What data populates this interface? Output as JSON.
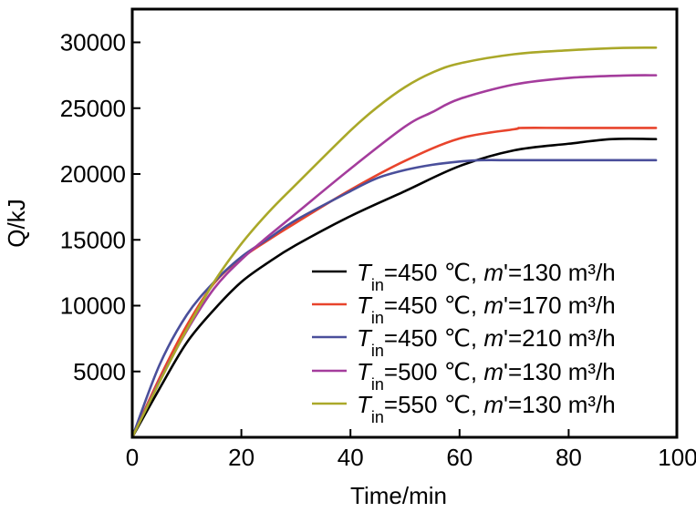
{
  "chart_data": {
    "type": "line",
    "xlabel": "Time/min",
    "ylabel": "Q/kJ",
    "xlim": [
      0,
      100
    ],
    "ylim": [
      0,
      32500
    ],
    "xticks": [
      0,
      20,
      40,
      60,
      80,
      100
    ],
    "yticks": [
      5000,
      10000,
      15000,
      20000,
      25000,
      30000
    ],
    "xtick_labels": [
      "0",
      "20",
      "40",
      "60",
      "80",
      "100"
    ],
    "ytick_labels": [
      "5000",
      "10000",
      "15000",
      "20000",
      "25000",
      "30000"
    ],
    "grid": false,
    "legend_position": "bottom-right",
    "series": [
      {
        "name": "T_in=450 ℃, m'=130 m³/h",
        "legend": {
          "t_symbol": "T",
          "subscript": "in",
          "temp": "=450 ℃, ",
          "m_symbol": "m",
          "flow": "'=130 m³/h"
        },
        "color": "#000000",
        "x": [
          0,
          5,
          10,
          15,
          20,
          25,
          30,
          40,
          50,
          60,
          70,
          80,
          88,
          96
        ],
        "y": [
          0,
          3700,
          7200,
          9700,
          11800,
          13300,
          14600,
          16800,
          18700,
          20600,
          21800,
          22300,
          22650,
          22650
        ]
      },
      {
        "name": "T_in=450 ℃, m'=170 m³/h",
        "legend": {
          "t_symbol": "T",
          "subscript": "in",
          "temp": "=450 ℃, ",
          "m_symbol": "m",
          "flow": "'=170 m³/h"
        },
        "color": "#e8442c",
        "x": [
          0,
          5,
          10,
          15,
          20,
          25,
          30,
          40,
          50,
          60,
          70,
          71.5,
          80,
          96
        ],
        "y": [
          0,
          4500,
          8500,
          11700,
          13600,
          15000,
          16300,
          18800,
          21000,
          22700,
          23400,
          23500,
          23500,
          23500
        ]
      },
      {
        "name": "T_in=450 ℃, m'=210 m³/h",
        "legend": {
          "t_symbol": "T",
          "subscript": "in",
          "temp": "=450 ℃, ",
          "m_symbol": "m",
          "flow": "'=210 m³/h"
        },
        "color": "#4a4f9b",
        "x": [
          0,
          5,
          10,
          15,
          20,
          25,
          30,
          40,
          45,
          50,
          55,
          60,
          64,
          70,
          80,
          96
        ],
        "y": [
          0,
          5500,
          9300,
          11800,
          13700,
          15100,
          16500,
          18700,
          19700,
          20300,
          20700,
          20950,
          21050,
          21050,
          21050,
          21050
        ]
      },
      {
        "name": "T_in=500 ℃, m'=130 m³/h",
        "legend": {
          "t_symbol": "T",
          "subscript": "in",
          "temp": "=500 ℃, ",
          "m_symbol": "m",
          "flow": "'=130 m³/h"
        },
        "color": "#a43c9c",
        "x": [
          0,
          5,
          10,
          15,
          20,
          25,
          30,
          40,
          50,
          55,
          60,
          70,
          80,
          90,
          96
        ],
        "y": [
          0,
          4300,
          8100,
          11300,
          13500,
          15300,
          17000,
          20400,
          23600,
          24700,
          25700,
          26800,
          27300,
          27480,
          27500
        ]
      },
      {
        "name": "T_in=550 ℃, m'=130 m³/h",
        "legend": {
          "t_symbol": "T",
          "subscript": "in",
          "temp": "=550 ℃, ",
          "m_symbol": "m",
          "flow": "'=130 m³/h"
        },
        "color": "#aaa829",
        "x": [
          0,
          5,
          10,
          15,
          20,
          25,
          30,
          40,
          45,
          50,
          55,
          60,
          70,
          80,
          90,
          96
        ],
        "y": [
          0,
          4200,
          8200,
          11800,
          14700,
          17100,
          19200,
          23300,
          25100,
          26600,
          27700,
          28400,
          29100,
          29400,
          29580,
          29600
        ]
      }
    ]
  }
}
